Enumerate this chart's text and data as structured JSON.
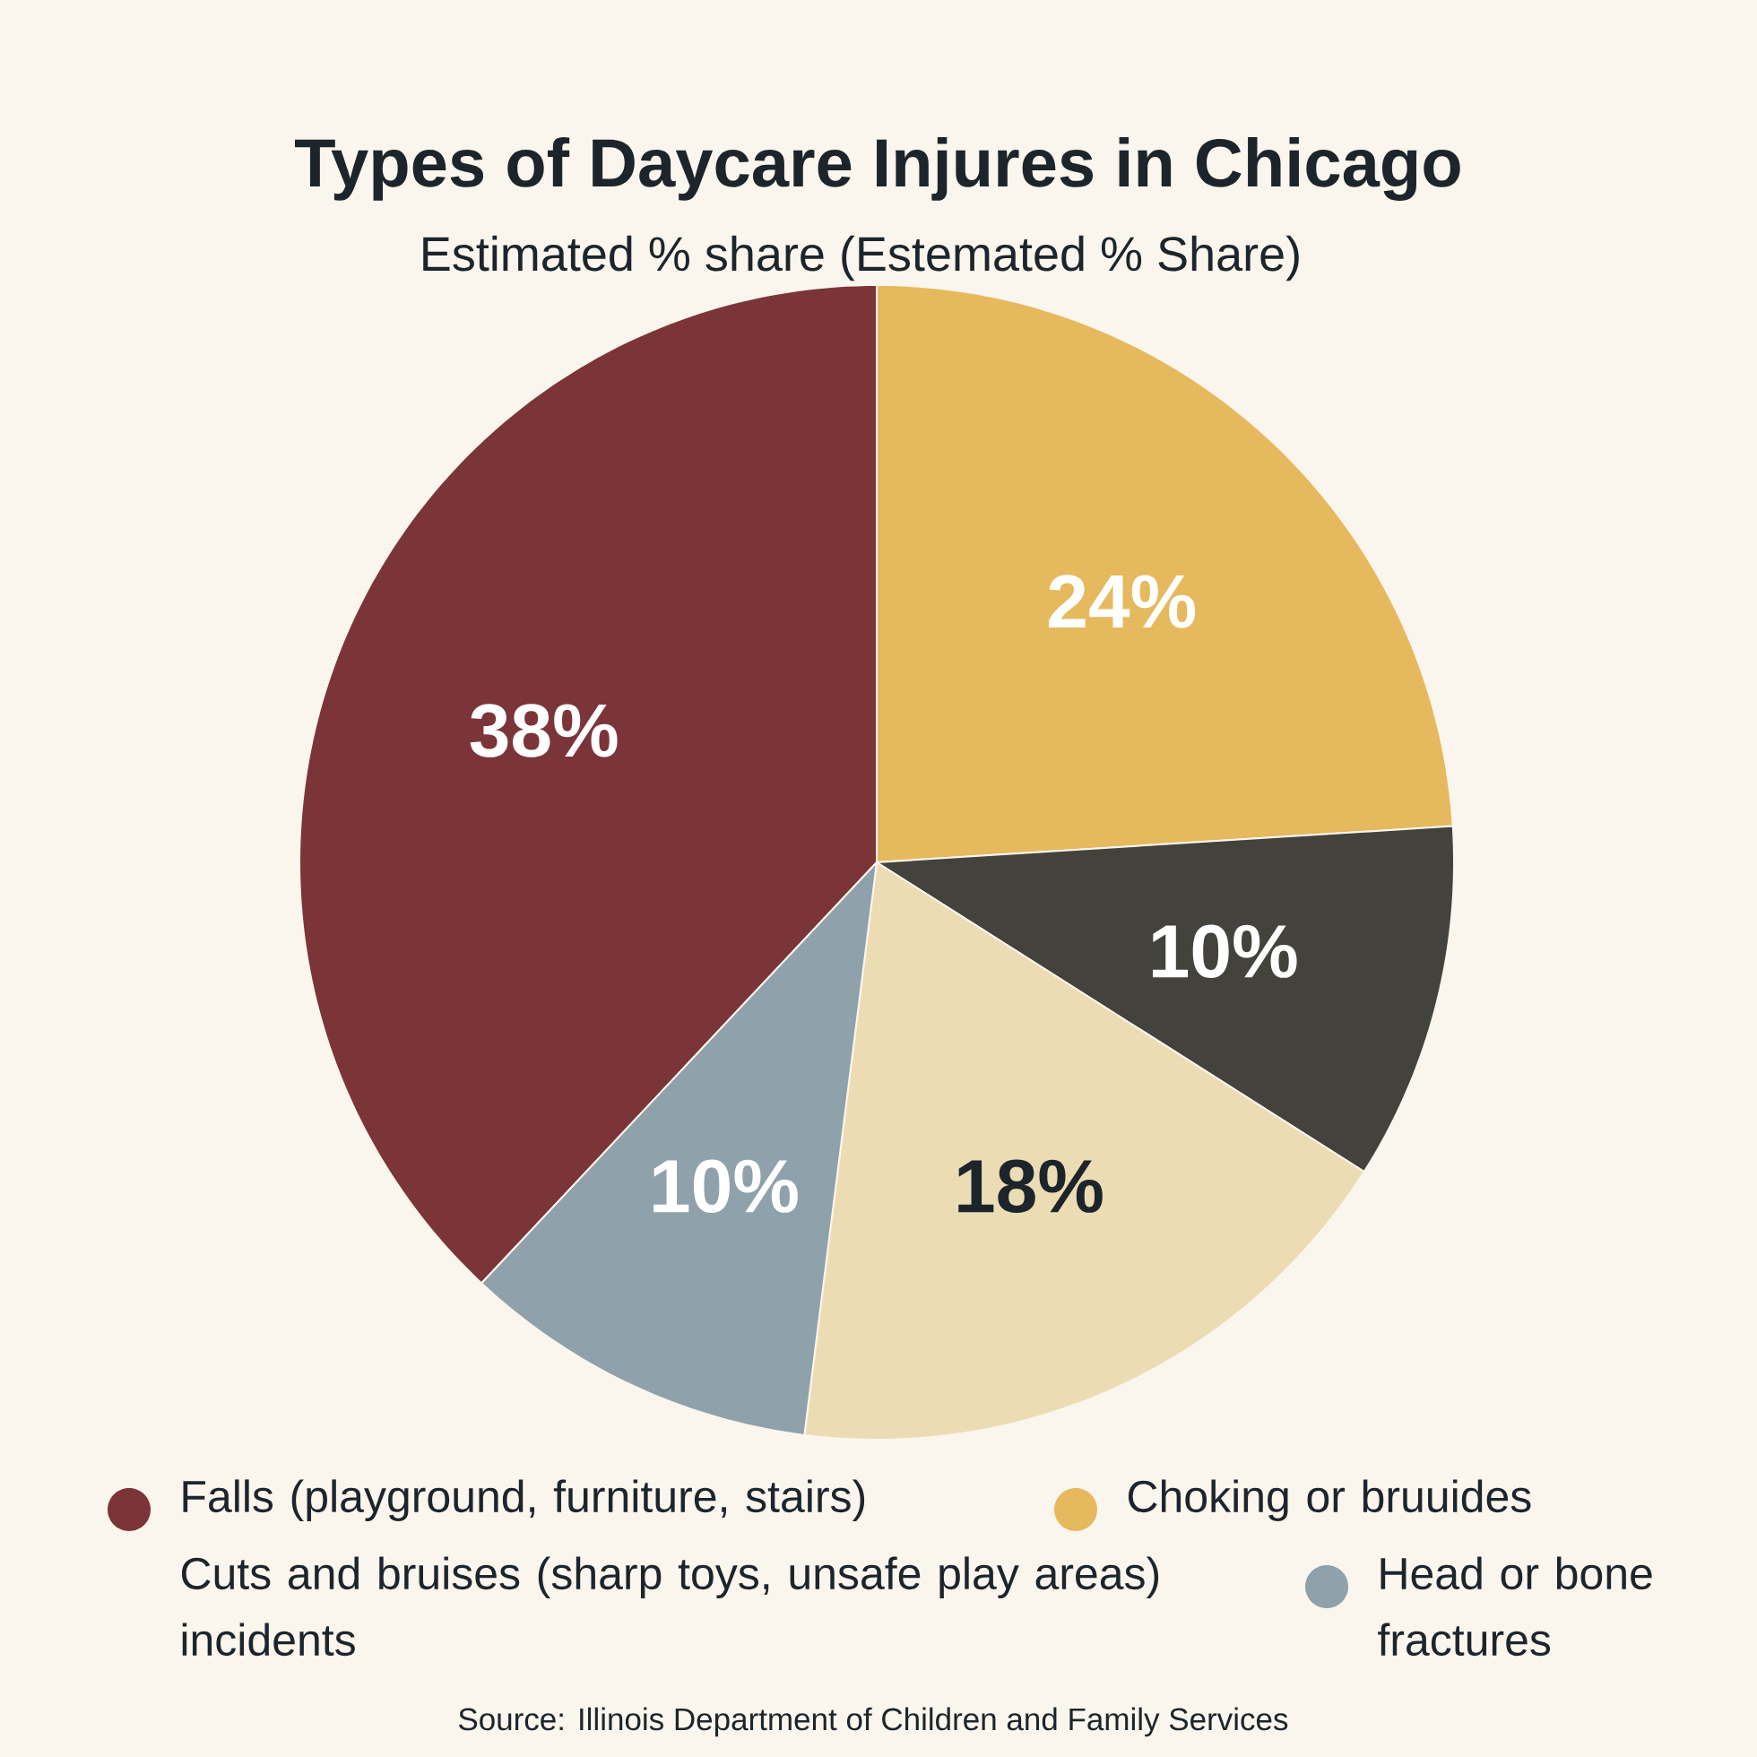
{
  "chart_data": {
    "type": "pie",
    "title": "Types of Daycare Injures in Chicago",
    "subtitle": "Estimated % share (Estemated % Share)",
    "categories": [
      "Falls (playground, furniture, stairs)",
      "Choking or bruuides",
      null,
      null,
      "Head or bone fractures"
    ],
    "values": [
      38,
      24,
      10,
      18,
      10
    ],
    "colors": [
      "#7b3539",
      "#e6b95f",
      "#43423d",
      "#ecdcb4",
      "#8fa1aa"
    ],
    "value_labels": [
      "38%",
      "24%",
      "10%",
      "18%",
      "10%"
    ],
    "legend": "bottom",
    "annotations": [
      "Cuts and bruises (sharp toys, unsafe play areas) incidents",
      "Source: Illinois Department of Children and Family Services"
    ]
  }
}
